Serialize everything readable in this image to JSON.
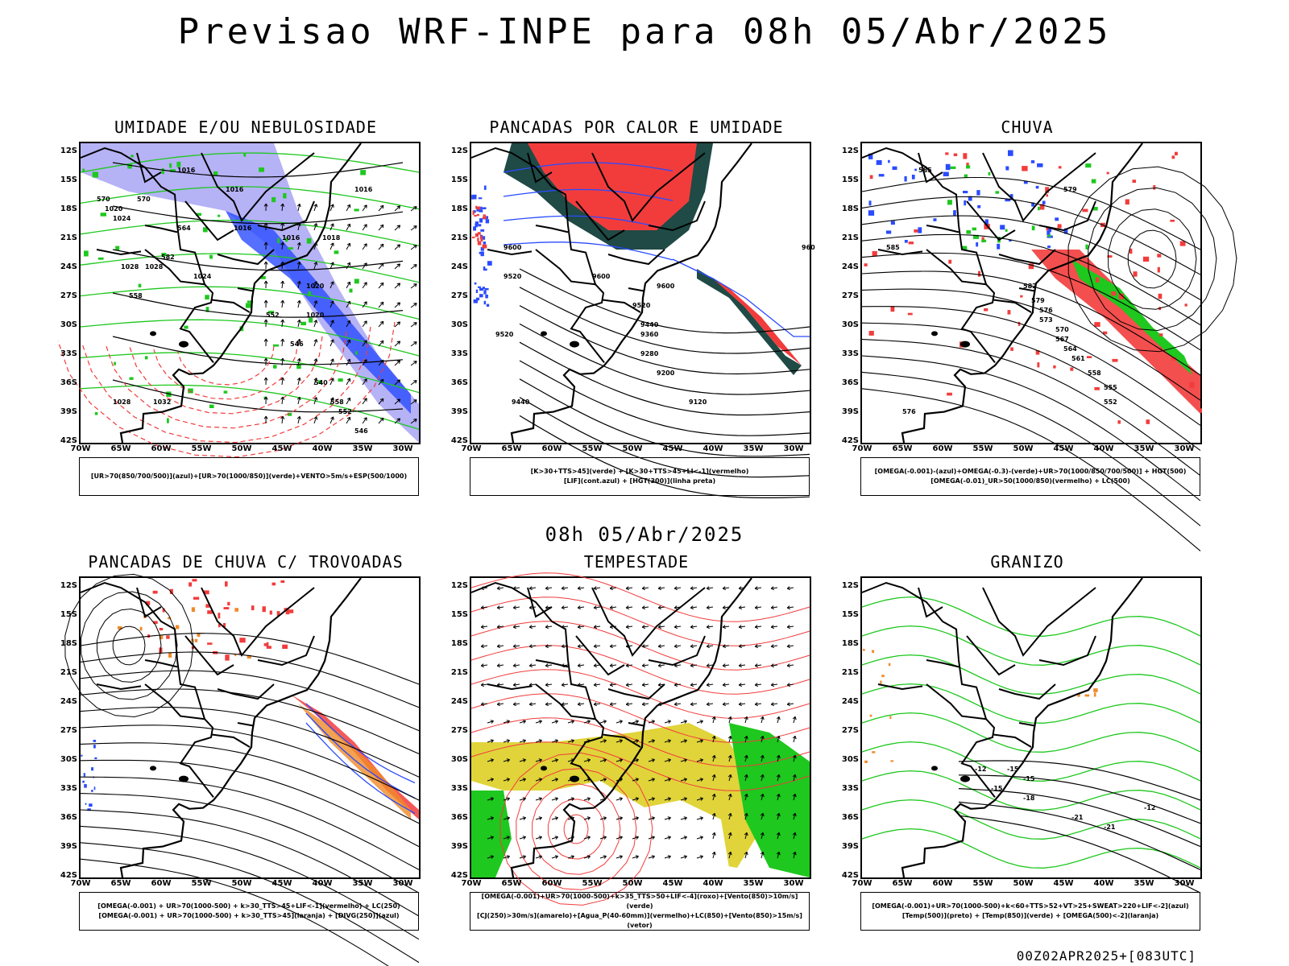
{
  "header": {
    "title": "Previsao WRF-INPE  para 08h 05/Abr/2025"
  },
  "mid_date": "08h 05/Abr/2025",
  "footer": "00Z02APR2025+[083UTC]",
  "axes": {
    "lat_labels": [
      "12S",
      "15S",
      "18S",
      "21S",
      "24S",
      "27S",
      "30S",
      "33S",
      "36S",
      "39S",
      "42S"
    ],
    "lon_labels": [
      "70W",
      "65W",
      "60W",
      "55W",
      "50W",
      "45W",
      "40W",
      "35W",
      "30W"
    ]
  },
  "colors": {
    "blue": "#2a4bff",
    "green": "#1ec81e",
    "red": "#f23c3c",
    "lavender": "#a9a4f5",
    "darkteal": "#1f4a45",
    "yellow": "#e0d43a",
    "orange": "#f08a28"
  },
  "panels": [
    {
      "id": "umidade",
      "title": "UMIDADE E/OU NEBULOSIDADE",
      "legend": [
        "[UR>70(850/700/500)](azul)+[UR>70(1000/850)](verde)+VENTO>5m/s+ESP(500/1000)"
      ],
      "contour_labels": [
        "1016",
        "1016",
        "1020",
        "1024",
        "1016",
        "1016",
        "1018",
        "1020",
        "1028",
        "1024",
        "1028",
        "1020",
        "1016",
        "1028",
        "1032",
        "570",
        "570",
        "564",
        "582",
        "558",
        "552",
        "546",
        "540",
        "558",
        "552",
        "546"
      ]
    },
    {
      "id": "pancadas_calor",
      "title": "PANCADAS POR CALOR E UMIDADE",
      "legend": [
        "[K>30+TTS>45](verde) + [K>30+TTS>45+LI<-1](vermelho)",
        "[LIF](cont.azul) + [HGT(300)](linha preta)"
      ],
      "contour_labels": [
        "9600",
        "9520",
        "9600",
        "9600",
        "9520",
        "9440",
        "9360",
        "9280",
        "9200",
        "9120",
        "9440",
        "9520",
        "960"
      ]
    },
    {
      "id": "chuva",
      "title": "CHUVA",
      "legend": [
        "[OMEGA(-0.001)-(azul)+OMEGA(-0.3)-(verde)+UR>70(1000/850/700/500)] + HGT(500)",
        "[OMEGA(-0.01)_UR>50(1000/850)(vermelho) + LC(500)"
      ],
      "contour_labels": [
        "585",
        "585",
        "582",
        "579",
        "576",
        "573",
        "570",
        "567",
        "564",
        "561",
        "558",
        "555",
        "552",
        "576",
        "579"
      ]
    },
    {
      "id": "pancadas_trovoadas",
      "title": "PANCADAS DE CHUVA C/ TROVOADAS",
      "legend": [
        "[OMEGA(-0.001) + UR>70(1000-500) + k>30_TTS>45+LIF<-1](vermelho) + LC(250)",
        "[OMEGA(-0.001) + UR>70(1000-500) + k>30_TTS>45](laranja) + [DIVG(250)](azul)"
      ],
      "contour_labels": []
    },
    {
      "id": "tempestade",
      "title": "TEMPESTADE",
      "legend": [
        "[OMEGA(-0.001)+UR>70(1000-500)+k>35_TTS>50+LIF<-4](roxo)+[Vento(850)>10m/s](verde)",
        "[CJ(250)>30m/s](amarelo)+[Agua_P(40-60mm)](vermelho)+LC(850)+[Vento(850)>15m/s](vetor)"
      ],
      "contour_labels": []
    },
    {
      "id": "granizo",
      "title": "GRANIZO",
      "legend": [
        "[OMEGA(-0.001)+UR>70(1000-500)+k<60+TTS>52+VT>25+SWEAT>220+LIF<-2](azul)",
        "[Temp(500)](preto) + [Temp(850)](verde) + [OMEGA(500)<-2](laranja)"
      ],
      "contour_labels": [
        "-15",
        "-18",
        "-21",
        "-12",
        "-15",
        "-21",
        "-12",
        "-15"
      ]
    }
  ]
}
